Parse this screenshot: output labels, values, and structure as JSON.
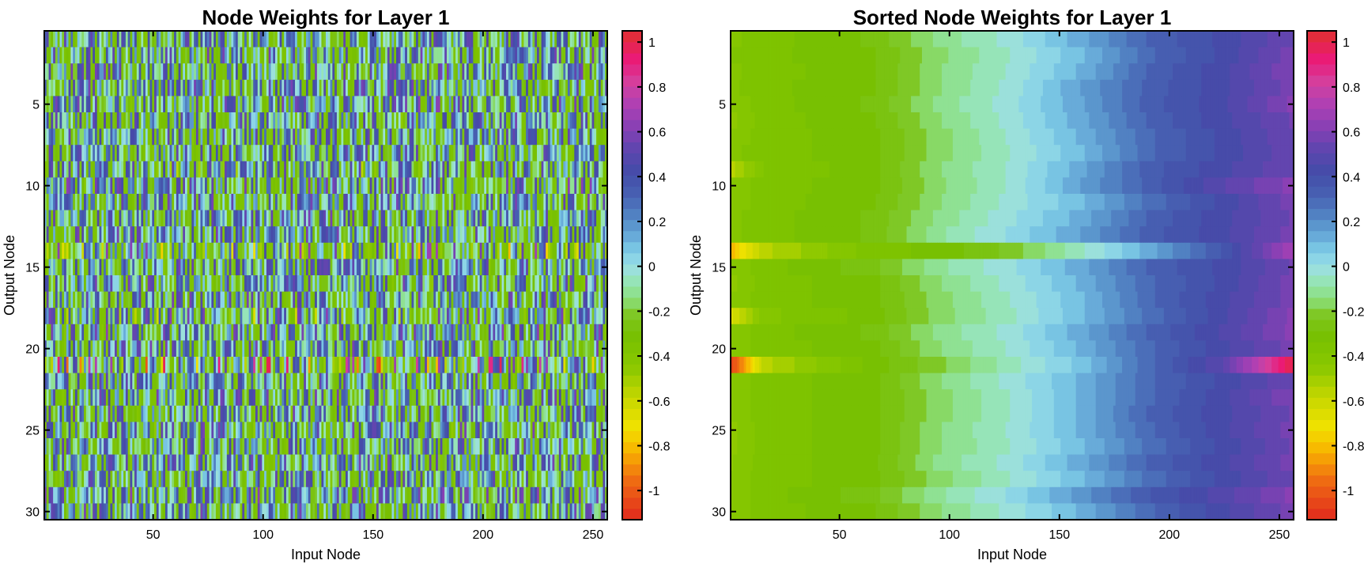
{
  "chart_data": [
    {
      "type": "heatmap",
      "title": "Node Weights for Layer 1",
      "xlabel": "Input Node",
      "ylabel": "Output Node",
      "xlim": [
        0.5,
        256.5
      ],
      "ylim": [
        0.5,
        30.5
      ],
      "xticks": [
        50,
        100,
        150,
        200,
        250
      ],
      "yticks": [
        5,
        10,
        15,
        20,
        25,
        30
      ],
      "order": "unsorted"
    },
    {
      "type": "heatmap",
      "title": "Sorted Node Weights for Layer 1",
      "xlabel": "Input Node",
      "ylabel": "Output Node",
      "xlim": [
        0.5,
        256.5
      ],
      "ylim": [
        0.5,
        30.5
      ],
      "xticks": [
        50,
        100,
        150,
        200,
        250
      ],
      "yticks": [
        5,
        10,
        15,
        20,
        25,
        30
      ],
      "order": "sorted ascending per row"
    }
  ],
  "shared": {
    "n_input": 256,
    "n_output": 30,
    "profile_knots_input_node": [
      1,
      16,
      64,
      96,
      128,
      160,
      192,
      224,
      256
    ],
    "row_sorted_profiles": [
      [
        -0.4,
        -0.36,
        -0.28,
        -0.12,
        -0.02,
        0.14,
        0.32,
        0.42,
        0.55
      ],
      [
        -0.38,
        -0.35,
        -0.3,
        -0.15,
        -0.04,
        0.1,
        0.3,
        0.42,
        0.58
      ],
      [
        -0.4,
        -0.36,
        -0.3,
        -0.14,
        -0.03,
        0.12,
        0.32,
        0.44,
        0.6
      ],
      [
        -0.4,
        -0.35,
        -0.3,
        -0.14,
        -0.02,
        0.16,
        0.33,
        0.44,
        0.58
      ],
      [
        -0.42,
        -0.36,
        -0.28,
        -0.12,
        -0.01,
        0.15,
        0.34,
        0.44,
        0.62
      ],
      [
        -0.45,
        -0.36,
        -0.3,
        -0.14,
        -0.02,
        0.14,
        0.32,
        0.44,
        0.56
      ],
      [
        -0.42,
        -0.36,
        -0.31,
        -0.16,
        -0.03,
        0.12,
        0.3,
        0.42,
        0.55
      ],
      [
        -0.4,
        -0.36,
        -0.31,
        -0.16,
        -0.04,
        0.1,
        0.3,
        0.42,
        0.54
      ],
      [
        -0.55,
        -0.38,
        -0.31,
        -0.14,
        -0.03,
        0.14,
        0.34,
        0.44,
        0.55
      ],
      [
        -0.42,
        -0.36,
        -0.31,
        -0.15,
        -0.03,
        0.16,
        0.33,
        0.5,
        0.62
      ],
      [
        -0.42,
        -0.36,
        -0.3,
        -0.14,
        -0.02,
        0.1,
        0.28,
        0.42,
        0.58
      ],
      [
        -0.4,
        -0.36,
        -0.28,
        -0.12,
        0.0,
        0.13,
        0.32,
        0.44,
        0.56
      ],
      [
        -0.4,
        -0.36,
        -0.28,
        -0.1,
        0.02,
        0.16,
        0.34,
        0.44,
        0.58
      ],
      [
        -0.8,
        -0.55,
        -0.36,
        -0.32,
        -0.22,
        -0.05,
        0.14,
        0.36,
        0.7
      ],
      [
        -0.42,
        -0.36,
        -0.26,
        -0.1,
        0.0,
        0.14,
        0.32,
        0.42,
        0.56
      ],
      [
        -0.45,
        -0.36,
        -0.31,
        -0.14,
        -0.02,
        0.12,
        0.3,
        0.42,
        0.58
      ],
      [
        -0.42,
        -0.36,
        -0.31,
        -0.16,
        -0.04,
        0.1,
        0.3,
        0.44,
        0.58
      ],
      [
        -0.65,
        -0.4,
        -0.32,
        -0.16,
        -0.05,
        0.1,
        0.28,
        0.44,
        0.62
      ],
      [
        -0.42,
        -0.36,
        -0.28,
        -0.12,
        -0.02,
        0.14,
        0.32,
        0.46,
        0.62
      ],
      [
        -0.42,
        -0.36,
        -0.31,
        -0.14,
        -0.03,
        0.12,
        0.3,
        0.44,
        0.58
      ],
      [
        -1.05,
        -0.55,
        -0.32,
        -0.2,
        -0.06,
        0.08,
        0.3,
        0.5,
        1.0
      ],
      [
        -0.42,
        -0.36,
        -0.31,
        -0.14,
        -0.02,
        0.12,
        0.3,
        0.42,
        0.55
      ],
      [
        -0.42,
        -0.36,
        -0.31,
        -0.16,
        -0.04,
        0.12,
        0.3,
        0.44,
        0.6
      ],
      [
        -0.42,
        -0.36,
        -0.31,
        -0.16,
        -0.04,
        0.12,
        0.32,
        0.44,
        0.56
      ],
      [
        -0.45,
        -0.36,
        -0.31,
        -0.14,
        -0.03,
        0.12,
        0.3,
        0.44,
        0.58
      ],
      [
        -0.45,
        -0.36,
        -0.31,
        -0.14,
        -0.04,
        0.1,
        0.28,
        0.42,
        0.56
      ],
      [
        -0.44,
        -0.36,
        -0.31,
        -0.12,
        -0.02,
        0.14,
        0.32,
        0.44,
        0.58
      ],
      [
        -0.42,
        -0.36,
        -0.31,
        -0.16,
        -0.04,
        0.1,
        0.28,
        0.42,
        0.55
      ],
      [
        -0.42,
        -0.36,
        -0.26,
        -0.1,
        0.02,
        0.18,
        0.36,
        0.48,
        0.62
      ],
      [
        -0.42,
        -0.36,
        -0.3,
        -0.14,
        -0.02,
        0.12,
        0.3,
        0.44,
        0.58
      ]
    ],
    "colorbar": {
      "range": [
        -1.13,
        1.05
      ],
      "ticks": [
        -1,
        -0.8,
        -0.6,
        -0.4,
        -0.2,
        0,
        0.2,
        0.4,
        0.6,
        0.8,
        1
      ],
      "tick_labels": [
        "-1",
        "-0.8",
        "-0.6",
        "-0.4",
        "-0.2",
        "0",
        "0.2",
        "0.4",
        "0.6",
        "0.8",
        "1"
      ],
      "levels": 44,
      "stops": [
        [
          -1.13,
          "#e0281e"
        ],
        [
          -0.95,
          "#f06e12"
        ],
        [
          -0.82,
          "#f8b400"
        ],
        [
          -0.72,
          "#f2e200"
        ],
        [
          -0.58,
          "#c4d600"
        ],
        [
          -0.45,
          "#8ac800"
        ],
        [
          -0.32,
          "#78c000"
        ],
        [
          -0.22,
          "#7ec61e"
        ],
        [
          -0.15,
          "#8ade78"
        ],
        [
          -0.07,
          "#96e4b4"
        ],
        [
          0.0,
          "#9cdfe6"
        ],
        [
          0.07,
          "#7ccbe6"
        ],
        [
          0.14,
          "#66a8d8"
        ],
        [
          0.22,
          "#5286c4"
        ],
        [
          0.32,
          "#4760b2"
        ],
        [
          0.42,
          "#444ca8"
        ],
        [
          0.52,
          "#5e46ae"
        ],
        [
          0.62,
          "#8840b4"
        ],
        [
          0.72,
          "#ae40b4"
        ],
        [
          0.82,
          "#d4409e"
        ],
        [
          0.92,
          "#ea1a78"
        ],
        [
          1.05,
          "#e0302e"
        ]
      ]
    }
  }
}
